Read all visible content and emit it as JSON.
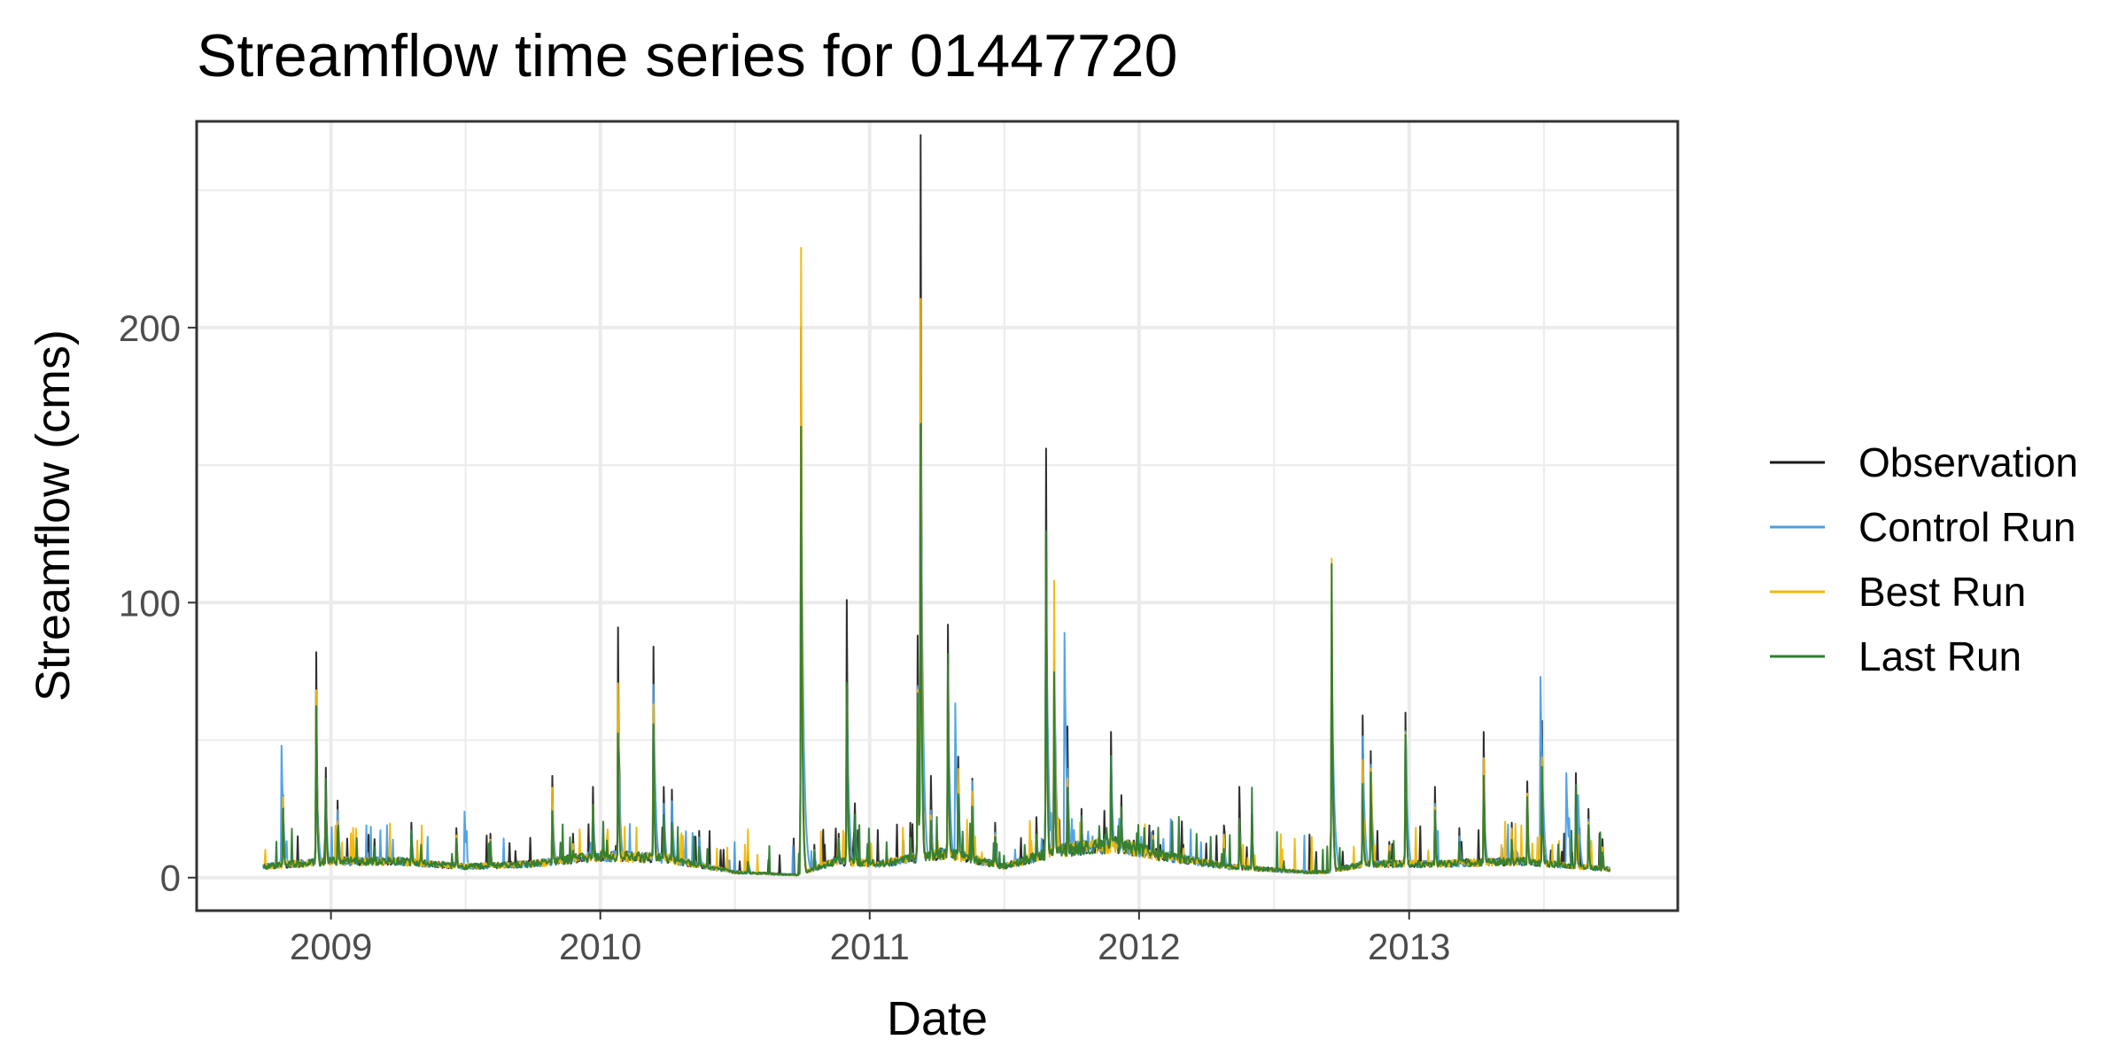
{
  "chart_data": {
    "type": "line",
    "title": "Streamflow time series for 01447720",
    "xlabel": "Date",
    "ylabel": "Streamflow (cms)",
    "xlim": [
      "2008-07-03",
      "2013-12-31"
    ],
    "ylim": [
      -12,
      275
    ],
    "x_ticks": [
      "2009-01-01",
      "2010-01-01",
      "2011-01-01",
      "2012-01-01",
      "2013-01-01"
    ],
    "x_tick_labels": [
      "2009",
      "2010",
      "2011",
      "2012",
      "2013"
    ],
    "y_ticks": [
      0,
      100,
      200
    ],
    "y_tick_labels": [
      "0",
      "100",
      "200"
    ],
    "grid": true,
    "legend_position": "right",
    "baseflow_points": [
      [
        "2008-10-01",
        4
      ],
      [
        "2009-01-01",
        6
      ],
      [
        "2009-04-01",
        6
      ],
      [
        "2009-07-01",
        4
      ],
      [
        "2009-10-01",
        5
      ],
      [
        "2010-01-01",
        8
      ],
      [
        "2010-04-01",
        7
      ],
      [
        "2010-07-01",
        2
      ],
      [
        "2010-09-25",
        1
      ],
      [
        "2010-11-15",
        6
      ],
      [
        "2011-01-15",
        5
      ],
      [
        "2011-04-15",
        9
      ],
      [
        "2011-07-01",
        4
      ],
      [
        "2011-09-15",
        10
      ],
      [
        "2011-12-01",
        12
      ],
      [
        "2012-02-01",
        8
      ],
      [
        "2012-05-01",
        4
      ],
      [
        "2012-08-15",
        2
      ],
      [
        "2012-09-10",
        2
      ],
      [
        "2012-11-01",
        5
      ],
      [
        "2013-02-01",
        5
      ],
      [
        "2013-06-01",
        6
      ],
      [
        "2013-09-30",
        3
      ]
    ],
    "peaks": [
      [
        "2008-10-28",
        30
      ],
      [
        "2008-12-12",
        82
      ],
      [
        "2008-12-25",
        40
      ],
      [
        "2009-01-10",
        28
      ],
      [
        "2009-03-01",
        14
      ],
      [
        "2009-04-20",
        20
      ],
      [
        "2009-06-20",
        18
      ],
      [
        "2009-08-05",
        16
      ],
      [
        "2009-10-28",
        37
      ],
      [
        "2009-11-25",
        16
      ],
      [
        "2009-12-22",
        33
      ],
      [
        "2010-01-25",
        91
      ],
      [
        "2010-03-14",
        84
      ],
      [
        "2010-03-28",
        33
      ],
      [
        "2010-04-08",
        32
      ],
      [
        "2010-05-15",
        17
      ],
      [
        "2010-07-20",
        9
      ],
      [
        "2010-09-30",
        227
      ],
      [
        "2010-10-18",
        12
      ],
      [
        "2010-11-20",
        16
      ],
      [
        "2010-12-01",
        101
      ],
      [
        "2010-12-12",
        27
      ],
      [
        "2011-02-25",
        20
      ],
      [
        "2011-03-07",
        88
      ],
      [
        "2011-03-11",
        270
      ],
      [
        "2011-03-25",
        37
      ],
      [
        "2011-04-17",
        92
      ],
      [
        "2011-05-01",
        44
      ],
      [
        "2011-05-20",
        36
      ],
      [
        "2011-06-20",
        20
      ],
      [
        "2011-08-15",
        22
      ],
      [
        "2011-08-28",
        156
      ],
      [
        "2011-09-08",
        107
      ],
      [
        "2011-09-26",
        55
      ],
      [
        "2011-10-15",
        25
      ],
      [
        "2011-11-24",
        53
      ],
      [
        "2011-12-08",
        30
      ],
      [
        "2012-01-20",
        17
      ],
      [
        "2012-03-01",
        12
      ],
      [
        "2012-04-25",
        19
      ],
      [
        "2012-05-16",
        33
      ],
      [
        "2012-06-02",
        23
      ],
      [
        "2012-07-15",
        6
      ],
      [
        "2012-09-18",
        115
      ],
      [
        "2012-10-30",
        59
      ],
      [
        "2012-11-10",
        46
      ],
      [
        "2012-12-05",
        13
      ],
      [
        "2012-12-27",
        60
      ],
      [
        "2013-02-05",
        33
      ],
      [
        "2013-03-10",
        18
      ],
      [
        "2013-04-12",
        53
      ],
      [
        "2013-05-20",
        20
      ],
      [
        "2013-06-10",
        35
      ],
      [
        "2013-06-30",
        57
      ],
      [
        "2013-08-15",
        38
      ],
      [
        "2013-09-01",
        25
      ],
      [
        "2013-09-20",
        14
      ]
    ],
    "series": [
      {
        "name": "Observation",
        "color": "#1a1a1a",
        "start": "2008-10-01",
        "end": "2013-09-30",
        "peak_scale": [
          [
            82,
            82
          ],
          [
            91,
            91
          ],
          [
            227,
            200
          ],
          [
            101,
            101
          ],
          [
            270,
            270
          ],
          [
            92,
            92
          ],
          [
            156,
            156
          ],
          [
            107,
            73
          ],
          [
            115,
            96
          ]
        ]
      },
      {
        "name": "Control Run",
        "color": "#4a9fe6",
        "start": "2008-10-01",
        "end": "2013-09-30",
        "extra_peaks": [
          [
            "2008-10-26",
            48
          ],
          [
            "2009-07-01",
            24
          ],
          [
            "2011-04-27",
            59
          ],
          [
            "2011-09-22",
            89
          ],
          [
            "2013-06-28",
            73
          ],
          [
            "2013-08-02",
            38
          ],
          [
            "2013-08-18",
            30
          ]
        ]
      },
      {
        "name": "Best Run",
        "color": "#f2b705",
        "start": "2008-10-01",
        "end": "2013-09-30",
        "extra_peaks": [
          [
            "2010-09-30",
            229
          ],
          [
            "2011-09-08",
            108
          ],
          [
            "2012-09-18",
            116
          ]
        ]
      },
      {
        "name": "Last Run",
        "color": "#2e7d32",
        "start": "2008-10-01",
        "end": "2013-09-30",
        "extra_peaks": [
          [
            "2011-03-11",
            165
          ],
          [
            "2011-08-28",
            126
          ],
          [
            "2012-09-18",
            114
          ]
        ]
      }
    ]
  }
}
